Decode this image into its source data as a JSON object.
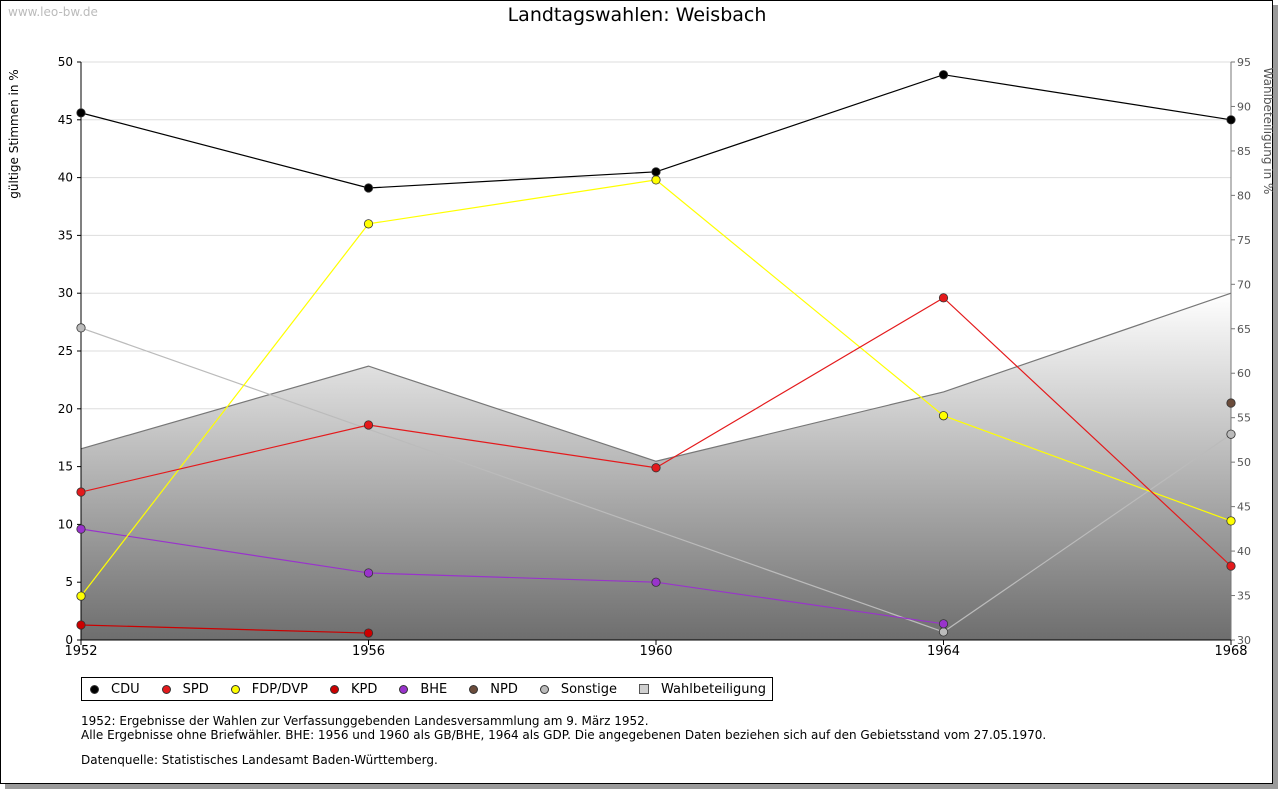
{
  "watermark": "www.leo-bw.de",
  "chart_data": {
    "type": "line",
    "title": "Landtagswahlen: Weisbach",
    "ylabel": "gültige Stimmen in %",
    "y2label": "Wahlbeteiligung in %",
    "x": [
      1952,
      1956,
      1960,
      1964,
      1968
    ],
    "xticks": [
      "1952",
      "1956",
      "1960",
      "1964",
      "1968"
    ],
    "ylim": [
      0,
      50
    ],
    "yticks": [
      "0",
      "5",
      "10",
      "15",
      "20",
      "25",
      "30",
      "35",
      "40",
      "45",
      "50"
    ],
    "y2lim": [
      30,
      95
    ],
    "y2ticks": [
      "30",
      "35",
      "40",
      "45",
      "50",
      "55",
      "60",
      "65",
      "70",
      "75",
      "80",
      "85",
      "90",
      "95"
    ],
    "grid": true,
    "series": [
      {
        "name": "CDU",
        "color": "#000000",
        "values": [
          45.6,
          39.1,
          40.5,
          48.9,
          45.0
        ]
      },
      {
        "name": "SPD",
        "color": "#e41a1c",
        "values": [
          12.8,
          18.6,
          14.9,
          29.6,
          6.4
        ]
      },
      {
        "name": "FDP/DVP",
        "color": "#ffff00",
        "values": [
          3.8,
          36.0,
          39.8,
          19.4,
          10.3
        ]
      },
      {
        "name": "KPD",
        "color": "#cc0000",
        "values": [
          1.3,
          0.6,
          null,
          null,
          null
        ]
      },
      {
        "name": "BHE",
        "color": "#9933cc",
        "values": [
          9.6,
          5.8,
          5.0,
          1.4,
          null
        ]
      },
      {
        "name": "NPD",
        "color": "#6b4c3b",
        "values": [
          null,
          null,
          null,
          null,
          20.5
        ]
      },
      {
        "name": "Sonstige",
        "color": "#bbbbbb",
        "values": [
          27.0,
          null,
          null,
          0.7,
          17.8
        ]
      }
    ],
    "turnout": {
      "name": "Wahlbeteiligung",
      "values": [
        51.5,
        60.8,
        50.1,
        57.9,
        69.0
      ]
    }
  },
  "legend": {
    "items": [
      {
        "label": "CDU",
        "color": "#000000"
      },
      {
        "label": "SPD",
        "color": "#e41a1c"
      },
      {
        "label": "FDP/DVP",
        "color": "#ffff00"
      },
      {
        "label": "KPD",
        "color": "#cc0000"
      },
      {
        "label": "BHE",
        "color": "#9933cc"
      },
      {
        "label": "NPD",
        "color": "#6b4c3b"
      },
      {
        "label": "Sonstige",
        "color": "#bbbbbb"
      }
    ],
    "turnout_label": "Wahlbeteiligung"
  },
  "notes": {
    "line1": "1952: Ergebnisse der Wahlen zur Verfassunggebenden Landesversammlung am 9. März 1952.",
    "line2": "Alle Ergebnisse ohne Briefwähler. BHE: 1956 und 1960 als GB/BHE, 1964 als GDP. Die angegebenen Daten beziehen sich auf den Gebietsstand vom 27.05.1970."
  },
  "source": "Datenquelle: Statistisches Landesamt Baden-Württemberg."
}
